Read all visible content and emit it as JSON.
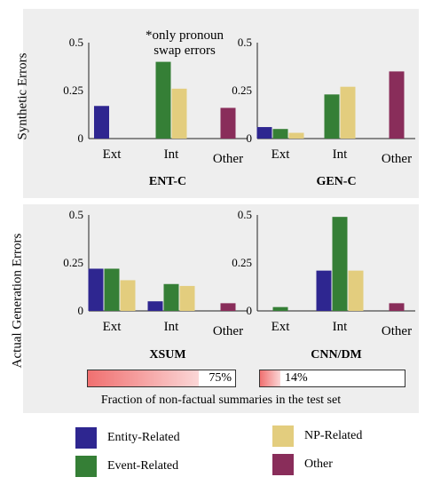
{
  "row_labels": {
    "top": "Synthetic Errors",
    "bottom": "Actual Generation Errors"
  },
  "colors": {
    "entity": "#2e2690",
    "event": "#357f36",
    "np": "#e3cd7e",
    "other": "#892d5a"
  },
  "annotation": "*only pronoun swap errors",
  "annotation_lines": [
    "*only pronoun",
    "swap errors"
  ],
  "chart_data": [
    {
      "type": "bar",
      "title": "ENT-C",
      "categories": [
        "Ext",
        "Int",
        "Other"
      ],
      "ylim": [
        0,
        0.5
      ],
      "yticks": [
        "0",
        "0.25",
        "0.5"
      ],
      "series": [
        {
          "name": "Entity-Related",
          "values": [
            0.17,
            0,
            0
          ]
        },
        {
          "name": "Event-Related",
          "values": [
            0,
            0.4,
            0
          ]
        },
        {
          "name": "NP-Related",
          "values": [
            0,
            0.26,
            0
          ]
        },
        {
          "name": "Other",
          "values": [
            0,
            0,
            0.16
          ]
        }
      ]
    },
    {
      "type": "bar",
      "title": "GEN-C",
      "categories": [
        "Ext",
        "Int",
        "Other"
      ],
      "ylim": [
        0,
        0.5
      ],
      "yticks": [
        "0",
        "0.25",
        "0.5"
      ],
      "series": [
        {
          "name": "Entity-Related",
          "values": [
            0.06,
            0,
            0
          ]
        },
        {
          "name": "Event-Related",
          "values": [
            0.05,
            0.23,
            0
          ]
        },
        {
          "name": "NP-Related",
          "values": [
            0.03,
            0.27,
            0
          ]
        },
        {
          "name": "Other",
          "values": [
            0,
            0,
            0.35
          ]
        }
      ]
    },
    {
      "type": "bar",
      "title": "XSUM",
      "categories": [
        "Ext",
        "Int",
        "Other"
      ],
      "ylim": [
        0,
        0.5
      ],
      "yticks": [
        "0",
        "0.25",
        "0.5"
      ],
      "series": [
        {
          "name": "Entity-Related",
          "values": [
            0.22,
            0.05,
            0
          ]
        },
        {
          "name": "Event-Related",
          "values": [
            0.22,
            0.14,
            0
          ]
        },
        {
          "name": "NP-Related",
          "values": [
            0.16,
            0.13,
            0
          ]
        },
        {
          "name": "Other",
          "values": [
            0,
            0,
            0.04
          ]
        }
      ]
    },
    {
      "type": "bar",
      "title": "CNN/DM",
      "categories": [
        "Ext",
        "Int",
        "Other"
      ],
      "ylim": [
        0,
        0.5
      ],
      "yticks": [
        "0",
        "0.25",
        "0.5"
      ],
      "series": [
        {
          "name": "Entity-Related",
          "values": [
            0,
            0.21,
            0
          ]
        },
        {
          "name": "Event-Related",
          "values": [
            0.02,
            0.49,
            0
          ]
        },
        {
          "name": "NP-Related",
          "values": [
            0,
            0.21,
            0
          ]
        },
        {
          "name": "Other",
          "values": [
            0,
            0,
            0.04
          ]
        }
      ]
    }
  ],
  "fraction": {
    "caption": "Fraction of non-factual summaries in the test set",
    "xsum": {
      "value": 0.75,
      "label": "75%"
    },
    "cnndm": {
      "value": 0.14,
      "label": "14%"
    }
  },
  "legend": [
    {
      "label": "Entity-Related",
      "color": "#2e2690"
    },
    {
      "label": "NP-Related",
      "color": "#e3cd7e"
    },
    {
      "label": "Event-Related",
      "color": "#357f36"
    },
    {
      "label": "Other",
      "color": "#892d5a"
    }
  ]
}
